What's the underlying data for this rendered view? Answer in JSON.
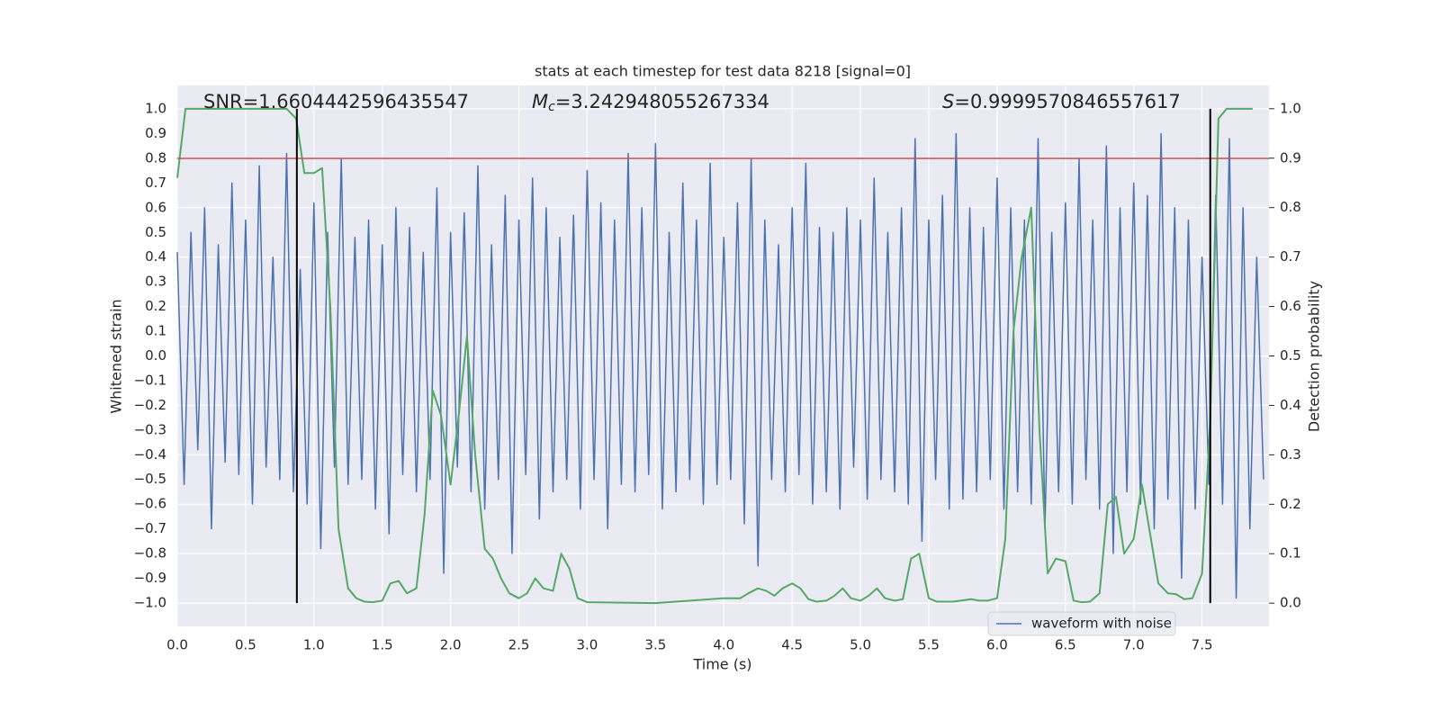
{
  "chart_data": {
    "type": "line",
    "title": "stats at each timestep for test data 8218 [signal=0]",
    "x_label": "Time (s)",
    "y_label": "Whitened strain",
    "y2_label": "Detection probability",
    "annotations": [
      {
        "text": "SNR=1.6604442596435547"
      },
      {
        "symbol": "M",
        "subscript": "c",
        "text": "=3.242948055267334"
      },
      {
        "symbol": "S",
        "text": "=0.9999570846557617"
      }
    ],
    "xlim": [
      0,
      7.99
    ],
    "ylim": [
      -1.095,
      1.095
    ],
    "y2lim": [
      -0.047,
      1.047
    ],
    "xticks": [
      {
        "value": 0,
        "label": "0.0"
      },
      0.5,
      {
        "value": 1,
        "label": "1.0"
      },
      1.5,
      {
        "value": 2,
        "label": "2.0"
      },
      2.5,
      {
        "value": 3,
        "label": "3.0"
      },
      3.5,
      {
        "value": 4,
        "label": "4.0"
      },
      4.5,
      {
        "value": 5,
        "label": "5.0"
      },
      5.5,
      {
        "value": 6,
        "label": "6.0"
      },
      6.5,
      {
        "value": 7,
        "label": "7.0"
      },
      7.5
    ],
    "yticks": [
      {
        "value": -1,
        "label": "−1.0"
      },
      {
        "value": -0.9,
        "label": "−0.9"
      },
      {
        "value": -0.8,
        "label": "−0.8"
      },
      {
        "value": -0.7,
        "label": "−0.7"
      },
      {
        "value": -0.6,
        "label": "−0.6"
      },
      {
        "value": -0.5,
        "label": "−0.5"
      },
      {
        "value": -0.4,
        "label": "−0.4"
      },
      {
        "value": -0.3,
        "label": "−0.3"
      },
      {
        "value": -0.2,
        "label": "−0.2"
      },
      {
        "value": -0.1,
        "label": "−0.1"
      },
      {
        "value": 0,
        "label": "0.0"
      },
      0.1,
      0.2,
      0.3,
      0.4,
      0.5,
      0.6,
      0.7,
      0.8,
      0.9,
      {
        "value": 1,
        "label": "1.0"
      }
    ],
    "y2ticks": [
      {
        "value": 0,
        "label": "0.0"
      },
      0.1,
      0.2,
      0.3,
      0.4,
      0.5,
      0.6,
      0.7,
      0.8,
      0.9,
      {
        "value": 1,
        "label": "1.0"
      }
    ],
    "grid": true,
    "legend": "lower right",
    "threshold": 0.8,
    "threshold_color": "#c44e52",
    "vlines": [
      0.875,
      7.56
    ],
    "vline_color": "#000000",
    "series": [
      {
        "name": "waveform with noise",
        "color": "#4c72b0",
        "x": [
          0,
          0.05,
          0.1,
          0.15,
          0.2,
          0.25,
          0.3,
          0.35,
          0.4,
          0.45,
          0.5,
          0.55,
          0.6,
          0.65,
          0.7,
          0.75,
          0.8,
          0.85,
          0.9,
          0.95,
          1,
          1.05,
          1.1,
          1.15,
          1.2,
          1.25,
          1.3,
          1.35,
          1.4,
          1.45,
          1.5,
          1.55,
          1.6,
          1.65,
          1.7,
          1.75,
          1.8,
          1.85,
          1.9,
          1.95,
          2,
          2.05,
          2.1,
          2.15,
          2.2,
          2.25,
          2.3,
          2.35,
          2.4,
          2.45,
          2.5,
          2.55,
          2.6,
          2.65,
          2.7,
          2.75,
          2.8,
          2.85,
          2.9,
          2.95,
          3,
          3.05,
          3.1,
          3.15,
          3.2,
          3.25,
          3.3,
          3.35,
          3.4,
          3.45,
          3.5,
          3.55,
          3.6,
          3.65,
          3.7,
          3.75,
          3.8,
          3.85,
          3.9,
          3.95,
          4,
          4.05,
          4.1,
          4.15,
          4.2,
          4.25,
          4.3,
          4.35,
          4.4,
          4.45,
          4.5,
          4.55,
          4.6,
          4.65,
          4.7,
          4.75,
          4.8,
          4.85,
          4.9,
          4.95,
          5,
          5.05,
          5.1,
          5.15,
          5.2,
          5.25,
          5.3,
          5.35,
          5.4,
          5.45,
          5.5,
          5.55,
          5.6,
          5.65,
          5.7,
          5.75,
          5.8,
          5.85,
          5.9,
          5.95,
          6,
          6.05,
          6.1,
          6.15,
          6.2,
          6.25,
          6.3,
          6.35,
          6.4,
          6.45,
          6.5,
          6.55,
          6.6,
          6.65,
          6.7,
          6.75,
          6.8,
          6.85,
          6.9,
          6.95,
          7,
          7.05,
          7.1,
          7.15,
          7.2,
          7.25,
          7.3,
          7.35,
          7.4,
          7.45,
          7.5,
          7.55,
          7.6,
          7.65,
          7.7,
          7.75,
          7.8,
          7.85,
          7.9,
          7.95
        ],
        "values": [
          0.42,
          -0.52,
          0.5,
          -0.38,
          0.6,
          -0.7,
          0.45,
          -0.43,
          0.7,
          -0.48,
          0.55,
          -0.6,
          0.77,
          -0.45,
          0.4,
          -0.5,
          0.82,
          -0.55,
          0.35,
          -0.6,
          0.62,
          -0.78,
          0.5,
          -0.45,
          0.8,
          -0.52,
          0.48,
          -0.5,
          0.55,
          -0.62,
          0.45,
          -0.72,
          0.6,
          -0.48,
          0.52,
          -0.55,
          0.42,
          -0.5,
          0.68,
          -0.88,
          0.5,
          -0.45,
          0.58,
          -0.55,
          0.77,
          -0.62,
          0.45,
          -0.5,
          0.65,
          -0.8,
          0.55,
          -0.48,
          0.72,
          -0.66,
          0.6,
          -0.55,
          0.48,
          -0.5,
          0.57,
          -0.62,
          0.75,
          -0.5,
          0.62,
          -0.7,
          0.55,
          -0.52,
          0.82,
          -0.55,
          0.6,
          -0.48,
          0.86,
          -0.62,
          0.5,
          -0.55,
          0.7,
          -0.5,
          0.55,
          -0.6,
          0.78,
          -0.52,
          0.48,
          -0.5,
          0.62,
          -0.68,
          0.8,
          -0.85,
          0.55,
          -0.5,
          0.45,
          -0.55,
          0.6,
          -0.48,
          0.78,
          -0.6,
          0.52,
          -0.55,
          0.5,
          -0.62,
          0.6,
          -0.45,
          0.55,
          -0.58,
          0.72,
          -0.5,
          0.5,
          -0.55,
          0.6,
          -0.6,
          0.88,
          -0.75,
          0.55,
          -0.5,
          0.65,
          -0.62,
          0.9,
          -0.58,
          0.6,
          -0.55,
          0.52,
          -0.5,
          0.72,
          -0.62,
          0.6,
          -0.55,
          0.55,
          -0.6,
          0.88,
          -0.7,
          0.5,
          -0.55,
          0.62,
          -0.6,
          0.8,
          -0.5,
          0.55,
          -0.62,
          0.85,
          -0.8,
          0.6,
          -0.55,
          0.7,
          -0.6,
          0.65,
          -0.7,
          0.9,
          -0.58,
          0.6,
          -0.9,
          0.55,
          -0.62,
          0.4,
          -0.52,
          0.65,
          -0.6,
          0.88,
          -0.98,
          0.6,
          -0.7,
          0.4,
          -0.5
        ]
      },
      {
        "color": "#55a868",
        "axis": "y2",
        "x": [
          0,
          0.06,
          0.2,
          0.8,
          0.87,
          0.93,
          1,
          1.06,
          1.12,
          1.18,
          1.25,
          1.31,
          1.37,
          1.43,
          1.5,
          1.56,
          1.62,
          1.68,
          1.75,
          1.81,
          1.87,
          1.93,
          2,
          2.06,
          2.12,
          2.18,
          2.25,
          2.31,
          2.37,
          2.43,
          2.5,
          2.56,
          2.62,
          2.68,
          2.75,
          2.81,
          2.87,
          2.93,
          3,
          3.5,
          4,
          4.06,
          4.12,
          4.18,
          4.25,
          4.31,
          4.37,
          4.43,
          4.5,
          4.56,
          4.62,
          4.68,
          4.75,
          4.81,
          4.87,
          4.93,
          5,
          5.06,
          5.12,
          5.18,
          5.25,
          5.31,
          5.37,
          5.43,
          5.5,
          5.56,
          5.68,
          5.81,
          5.87,
          5.93,
          6,
          6.06,
          6.12,
          6.18,
          6.25,
          6.31,
          6.37,
          6.43,
          6.5,
          6.56,
          6.62,
          6.68,
          6.75,
          6.81,
          6.87,
          6.93,
          7,
          7.06,
          7.12,
          7.18,
          7.25,
          7.31,
          7.37,
          7.43,
          7.5,
          7.56,
          7.62,
          7.68,
          7.87
        ],
        "values": [
          0.86,
          1.0,
          1.0,
          1.0,
          0.98,
          0.87,
          0.87,
          0.88,
          0.6,
          0.15,
          0.03,
          0.01,
          0.003,
          0.002,
          0.005,
          0.04,
          0.045,
          0.02,
          0.03,
          0.18,
          0.43,
          0.38,
          0.24,
          0.38,
          0.54,
          0.3,
          0.11,
          0.09,
          0.05,
          0.02,
          0.01,
          0.02,
          0.05,
          0.03,
          0.025,
          0.1,
          0.07,
          0.01,
          0.002,
          0.0,
          0.01,
          0.01,
          0.01,
          0.02,
          0.03,
          0.025,
          0.015,
          0.03,
          0.04,
          0.03,
          0.008,
          0.003,
          0.005,
          0.015,
          0.03,
          0.01,
          0.005,
          0.015,
          0.03,
          0.01,
          0.005,
          0.008,
          0.09,
          0.1,
          0.01,
          0.003,
          0.003,
          0.008,
          0.005,
          0.005,
          0.01,
          0.13,
          0.55,
          0.7,
          0.8,
          0.35,
          0.06,
          0.09,
          0.085,
          0.005,
          0.002,
          0.003,
          0.02,
          0.2,
          0.215,
          0.1,
          0.13,
          0.24,
          0.14,
          0.04,
          0.02,
          0.018,
          0.008,
          0.01,
          0.06,
          0.37,
          0.98,
          1.0,
          1.0
        ]
      }
    ]
  }
}
